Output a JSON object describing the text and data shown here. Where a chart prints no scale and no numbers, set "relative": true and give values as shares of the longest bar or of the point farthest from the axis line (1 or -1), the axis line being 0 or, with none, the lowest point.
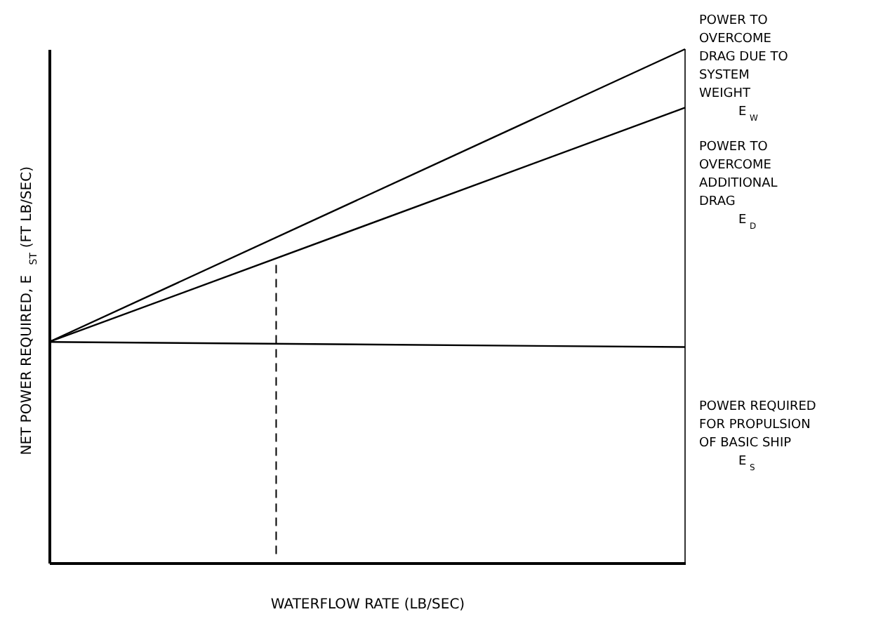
{
  "chart_data": {
    "type": "line",
    "relative": true,
    "xlabel": "WATERFLOW RATE (LB/SEC)",
    "ylabel": "NET POWER REQUIRED, E$_{ST}$ (FT LB/SEC)",
    "categories": [
      null,
      null
    ],
    "marker": "none",
    "line_style": "solid",
    "series": [
      {
        "color": "#000000",
        "values": [
          0.43,
          1.0
        ]
      },
      {
        "color": "#000000",
        "values": [
          0.43,
          0.886
        ]
      },
      {
        "color": "#000000",
        "values": [
          0.43,
          0.42
        ]
      }
    ],
    "annotations": [
      "POWER TO\nOVERCOME\nDRAG DUE TO\nSYSTEM\nWEIGHT\nE$_{W}$",
      "POWER TO\nOVERCOME\nADDITIONAL\nDRAG\nE$_{D}$",
      "POWER REQUIRED\nFOR PROPULSION\nOF BASIC SHIP\nE$_{S}$"
    ]
  }
}
